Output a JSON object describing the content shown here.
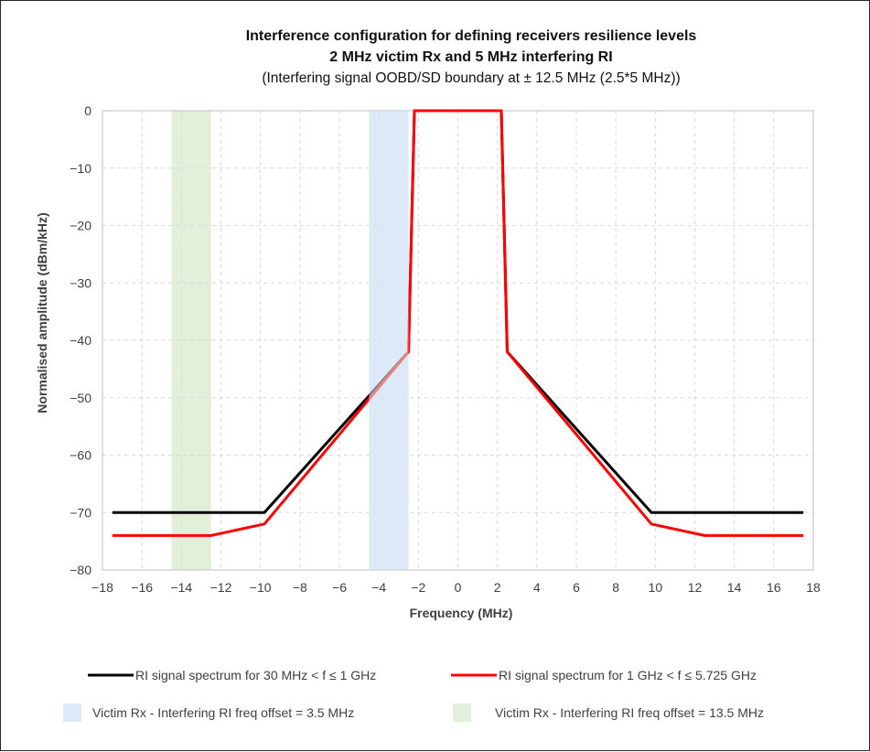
{
  "chart_data": {
    "type": "line",
    "title": "Interference configuration for defining receivers resilience levels",
    "subtitle": "2 MHz victim Rx and 5 MHz interfering RI",
    "subtitle2": "(Interfering signal OOBD/SD boundary at ± 12.5 MHz (2.5*5 MHz))",
    "xlabel": "Frequency (MHz)",
    "ylabel": "Normalised amplitude (dBm/kHz)",
    "xlim": [
      -18,
      18
    ],
    "ylim": [
      -80,
      0
    ],
    "xticks": [
      -18,
      -16,
      -14,
      -12,
      -10,
      -8,
      -6,
      -4,
      -2,
      0,
      2,
      4,
      6,
      8,
      10,
      12,
      14,
      16,
      18
    ],
    "yticks": [
      0,
      -10,
      -20,
      -30,
      -40,
      -50,
      -60,
      -70,
      -80
    ],
    "grid": true,
    "legend_position": "bottom",
    "series": [
      {
        "name": "RI signal spectrum for 30 MHz < f ≤ 1 GHz",
        "color": "#000000",
        "x": [
          -17.5,
          -9.8,
          -2.5,
          -2.2,
          2.2,
          2.5,
          9.8,
          17.5
        ],
        "y": [
          -70,
          -70,
          -42,
          0,
          0,
          -42,
          -70,
          -70
        ]
      },
      {
        "name": "RI signal spectrum for 1 GHz < f ≤ 5.725 GHz",
        "color": "#ff0000",
        "x": [
          -17.5,
          -12.5,
          -9.8,
          -2.5,
          -2.2,
          2.2,
          2.5,
          9.8,
          12.5,
          17.5
        ],
        "y": [
          -74,
          -74,
          -72,
          -42,
          0,
          0,
          -42,
          -72,
          -74,
          -74
        ]
      }
    ],
    "bands": [
      {
        "name": "Victim Rx - Interfering RI freq offset = 3.5 MHz",
        "color": "#dde9f6",
        "x_range": [
          -4.5,
          -2.5
        ]
      },
      {
        "name": "Victim Rx - Interfering RI freq offset = 13.5 MHz",
        "color": "#e3f0d9",
        "x_range": [
          -14.5,
          -12.5
        ]
      }
    ]
  }
}
